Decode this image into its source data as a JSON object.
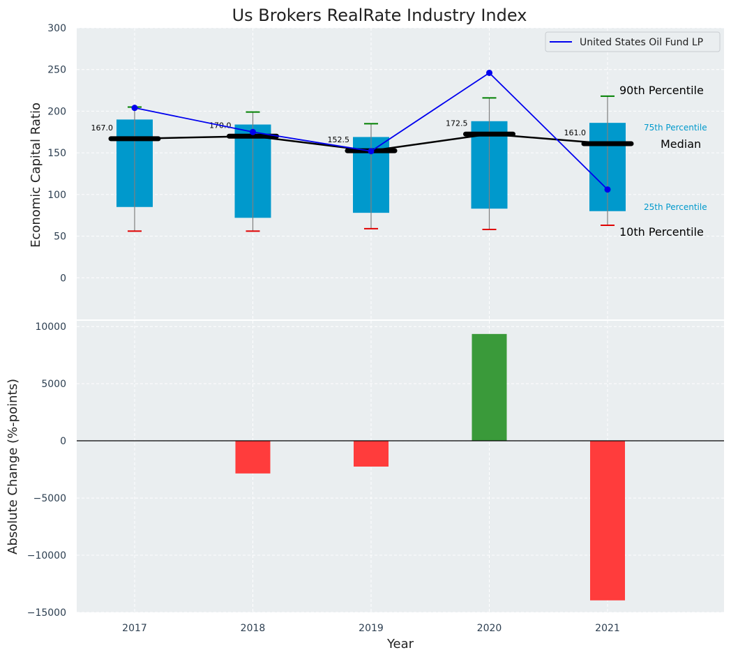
{
  "chart_data": {
    "type": "bar",
    "title": "Us Brokers RealRate Industry Index",
    "categories": [
      "2017",
      "2018",
      "2019",
      "2020",
      "2021"
    ],
    "xlabel": "Year",
    "colors": {
      "iqr_box": "#0099cc",
      "median": "#000000",
      "p90_whisker": "#008000",
      "p10_whisker": "#e00000",
      "company_line": "#0000ee",
      "positive_change": "#3a9a3a",
      "negative_change": "#ff3c3c",
      "panel_bg": "#eaeef0"
    },
    "top_panel": {
      "ylabel": "Economic Capital Ratio",
      "ylim": [
        -50,
        300
      ],
      "yticks": [
        "300",
        "250",
        "200",
        "150",
        "100",
        "50",
        "0"
      ],
      "grid": true,
      "legend_position": "top-right",
      "percentile_25": [
        85,
        72,
        78,
        83,
        80
      ],
      "percentile_75": [
        190,
        184,
        169,
        188,
        186
      ],
      "percentile_10": [
        56,
        56,
        59,
        58,
        63
      ],
      "percentile_90": [
        205,
        199,
        185,
        216,
        218
      ],
      "median": [
        167.0,
        170.0,
        152.5,
        172.5,
        161.0
      ],
      "median_labels": [
        "167.0",
        "170.0",
        "152.5",
        "172.5",
        "161.0"
      ],
      "series": [
        {
          "name": "United States Oil Fund LP",
          "values": [
            204,
            175,
            152,
            246,
            106
          ]
        }
      ],
      "annotations": {
        "p90": "90th Percentile",
        "p75": "75th Percentile",
        "median": "Median",
        "p25": "25th Percentile",
        "p10": "10th Percentile"
      }
    },
    "bottom_panel": {
      "ylabel": "Absolute Change (%-points)",
      "ylim": [
        -15000,
        10500
      ],
      "yticks": [
        "10000",
        "5000",
        "0",
        "−5000",
        "−10000",
        "−15000"
      ],
      "grid": true,
      "values": [
        0,
        -2850,
        -2250,
        9350,
        -13950
      ]
    }
  }
}
